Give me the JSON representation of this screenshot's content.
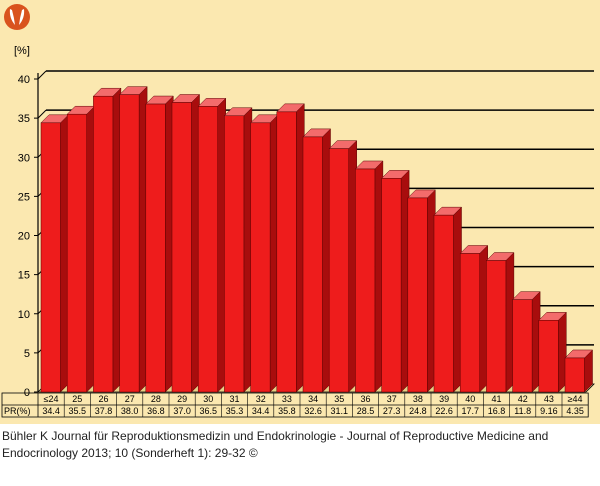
{
  "chart_data": {
    "type": "bar",
    "categories": [
      "≤24",
      "25",
      "26",
      "27",
      "28",
      "29",
      "30",
      "31",
      "32",
      "33",
      "34",
      "35",
      "36",
      "37",
      "38",
      "39",
      "40",
      "41",
      "42",
      "43",
      "≥44"
    ],
    "values": [
      34.4,
      35.5,
      37.8,
      38.0,
      36.8,
      37.0,
      36.5,
      35.3,
      34.4,
      35.8,
      32.6,
      31.1,
      28.5,
      27.3,
      24.8,
      22.6,
      17.7,
      16.8,
      11.8,
      9.16,
      4.35
    ],
    "value_labels": [
      "34.4",
      "35.5",
      "37.8",
      "38.0",
      "36.8",
      "37.0",
      "36.5",
      "35.3",
      "34.4",
      "35.8",
      "32.6",
      "31.1",
      "28.5",
      "27.3",
      "24.8",
      "22.6",
      "17.7",
      "16.8",
      "11.8",
      "9.16",
      "4.35"
    ],
    "ylabel": "[%]",
    "row_label": "PR(%)",
    "yticks": [
      0,
      5,
      10,
      15,
      20,
      25,
      30,
      35,
      40
    ],
    "ylim": [
      0,
      40
    ],
    "grid": true,
    "colors": {
      "bar_front": "#ee1c1c",
      "bar_side": "#a80d0d",
      "bar_top": "#f36b6b",
      "background": "#fbe8b0",
      "gridline": "#000000"
    }
  },
  "citation": {
    "text": "Bühler K Journal für Reproduktionsmedizin und Endokrinologie - Journal of Reproductive Medicine and Endocrinology 2013; 10 (Sonderheft 1):  29-32 ©"
  },
  "logo": {
    "icon": "journal-logo-icon",
    "color": "#d9531e"
  }
}
